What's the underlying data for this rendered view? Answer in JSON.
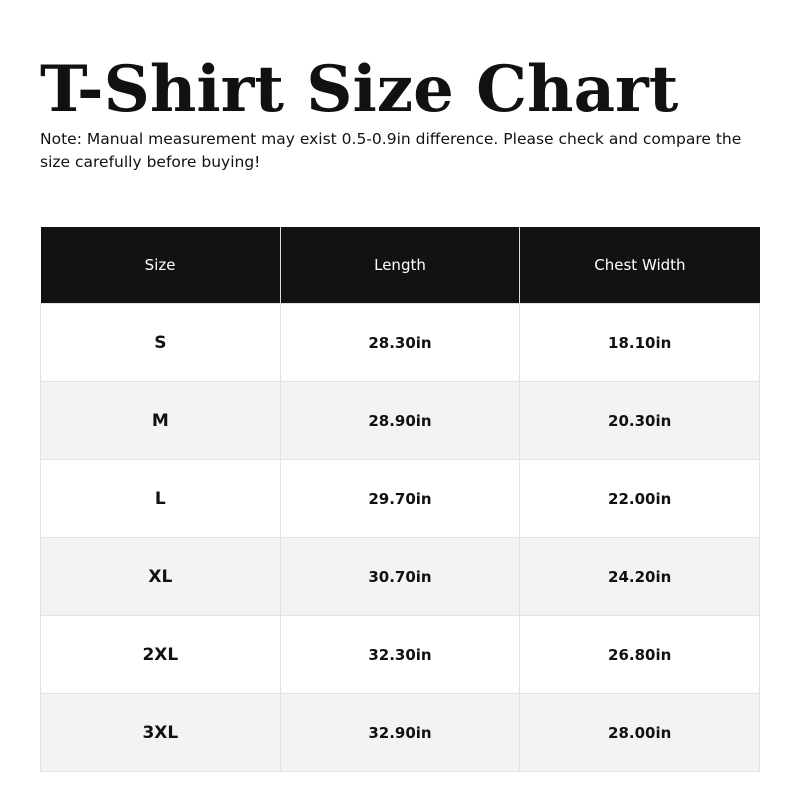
{
  "title": "T-Shirt Size Chart",
  "note": "Note: Manual measurement may exist 0.5-0.9in difference. Please check and compare the size carefully before buying!",
  "table": {
    "headers": [
      "Size",
      "Length",
      "Chest Width"
    ],
    "rows": [
      [
        "S",
        "28.30in",
        "18.10in"
      ],
      [
        "M",
        "28.90in",
        "20.30in"
      ],
      [
        "L",
        "29.70in",
        "22.00in"
      ],
      [
        "XL",
        "30.70in",
        "24.20in"
      ],
      [
        "2XL",
        "32.30in",
        "26.80in"
      ],
      [
        "3XL",
        "32.90in",
        "28.00in"
      ]
    ]
  }
}
